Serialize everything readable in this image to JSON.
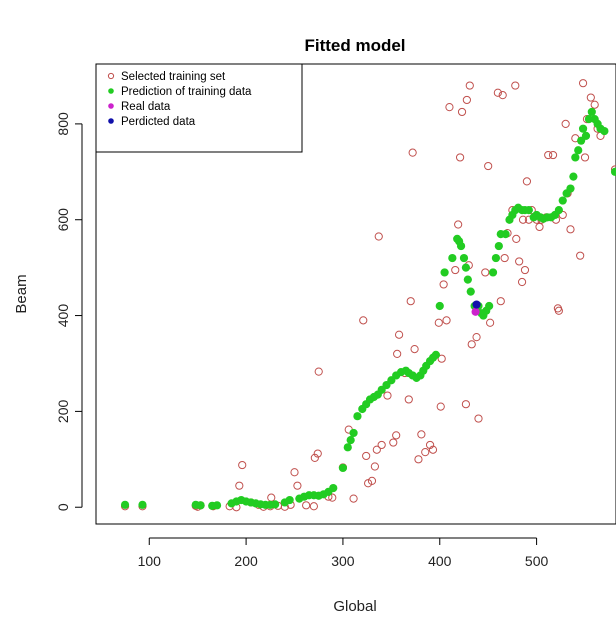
{
  "chart_data": {
    "type": "scatter",
    "title": "Fitted model",
    "xlabel": "Global",
    "ylabel": "Beam",
    "xlim": [
      45,
      582
    ],
    "ylim": [
      -35,
      925
    ],
    "xticks": [
      100,
      200,
      300,
      400,
      500
    ],
    "yticks": [
      0,
      200,
      400,
      600,
      800
    ],
    "grid": false,
    "legend_position": "top-left",
    "series": [
      {
        "name": "Selected training set",
        "marker": "open-circle",
        "color": "#c0504d",
        "points": [
          [
            75,
            2
          ],
          [
            93,
            2
          ],
          [
            148,
            3
          ],
          [
            150,
            1
          ],
          [
            153,
            4
          ],
          [
            166,
            2
          ],
          [
            183,
            2
          ],
          [
            190,
            0
          ],
          [
            193,
            45
          ],
          [
            196,
            88
          ],
          [
            205,
            10
          ],
          [
            213,
            5
          ],
          [
            218,
            1
          ],
          [
            225,
            2
          ],
          [
            226,
            20
          ],
          [
            233,
            3
          ],
          [
            240,
            1
          ],
          [
            246,
            5
          ],
          [
            250,
            73
          ],
          [
            253,
            45
          ],
          [
            262,
            4
          ],
          [
            270,
            2
          ],
          [
            271,
            103
          ],
          [
            274,
            112
          ],
          [
            275,
            283
          ],
          [
            285,
            22
          ],
          [
            289,
            20
          ],
          [
            300,
            83
          ],
          [
            306,
            162
          ],
          [
            311,
            18
          ],
          [
            321,
            390
          ],
          [
            324,
            107
          ],
          [
            326,
            50
          ],
          [
            330,
            55
          ],
          [
            333,
            85
          ],
          [
            335,
            120
          ],
          [
            337,
            565
          ],
          [
            340,
            130
          ],
          [
            346,
            233
          ],
          [
            352,
            135
          ],
          [
            355,
            150
          ],
          [
            356,
            320
          ],
          [
            358,
            360
          ],
          [
            364,
            280
          ],
          [
            368,
            225
          ],
          [
            370,
            430
          ],
          [
            372,
            740
          ],
          [
            374,
            330
          ],
          [
            378,
            100
          ],
          [
            381,
            152
          ],
          [
            385,
            115
          ],
          [
            390,
            130
          ],
          [
            393,
            120
          ],
          [
            399,
            385
          ],
          [
            401,
            210
          ],
          [
            402,
            310
          ],
          [
            404,
            465
          ],
          [
            407,
            390
          ],
          [
            410,
            835
          ],
          [
            416,
            495
          ],
          [
            419,
            590
          ],
          [
            421,
            730
          ],
          [
            423,
            825
          ],
          [
            427,
            215
          ],
          [
            428,
            850
          ],
          [
            430,
            505
          ],
          [
            431,
            880
          ],
          [
            433,
            340
          ],
          [
            438,
            355
          ],
          [
            440,
            185
          ],
          [
            447,
            490
          ],
          [
            450,
            712
          ],
          [
            452,
            385
          ],
          [
            460,
            865
          ],
          [
            463,
            430
          ],
          [
            465,
            860
          ],
          [
            467,
            520
          ],
          [
            470,
            572
          ],
          [
            475,
            620
          ],
          [
            478,
            880
          ],
          [
            479,
            560
          ],
          [
            482,
            513
          ],
          [
            485,
            470
          ],
          [
            486,
            600
          ],
          [
            488,
            495
          ],
          [
            490,
            680
          ],
          [
            492,
            600
          ],
          [
            495,
            620
          ],
          [
            500,
            600
          ],
          [
            503,
            585
          ],
          [
            505,
            600
          ],
          [
            510,
            605
          ],
          [
            512,
            735
          ],
          [
            517,
            735
          ],
          [
            520,
            600
          ],
          [
            522,
            415
          ],
          [
            523,
            410
          ],
          [
            527,
            610
          ],
          [
            530,
            800
          ],
          [
            532,
            655
          ],
          [
            535,
            580
          ],
          [
            540,
            770
          ],
          [
            545,
            525
          ],
          [
            548,
            885
          ],
          [
            550,
            730
          ],
          [
            552,
            810
          ],
          [
            556,
            855
          ],
          [
            560,
            840
          ],
          [
            563,
            790
          ],
          [
            566,
            775
          ],
          [
            581,
            705
          ]
        ]
      },
      {
        "name": "Prediction of training data",
        "marker": "filled-circle",
        "color": "#22cc22",
        "points": [
          [
            75,
            5
          ],
          [
            93,
            5
          ],
          [
            148,
            5
          ],
          [
            153,
            4
          ],
          [
            165,
            3
          ],
          [
            170,
            4
          ],
          [
            185,
            8
          ],
          [
            190,
            12
          ],
          [
            195,
            15
          ],
          [
            200,
            12
          ],
          [
            205,
            10
          ],
          [
            210,
            8
          ],
          [
            215,
            6
          ],
          [
            220,
            5
          ],
          [
            225,
            5
          ],
          [
            230,
            6
          ],
          [
            240,
            10
          ],
          [
            245,
            15
          ],
          [
            255,
            18
          ],
          [
            260,
            22
          ],
          [
            265,
            25
          ],
          [
            270,
            25
          ],
          [
            275,
            24
          ],
          [
            280,
            27
          ],
          [
            285,
            32
          ],
          [
            290,
            40
          ],
          [
            300,
            82
          ],
          [
            305,
            125
          ],
          [
            308,
            140
          ],
          [
            311,
            155
          ],
          [
            315,
            190
          ],
          [
            320,
            205
          ],
          [
            324,
            215
          ],
          [
            328,
            225
          ],
          [
            332,
            230
          ],
          [
            336,
            235
          ],
          [
            340,
            245
          ],
          [
            345,
            255
          ],
          [
            350,
            265
          ],
          [
            355,
            275
          ],
          [
            360,
            282
          ],
          [
            365,
            285
          ],
          [
            368,
            280
          ],
          [
            372,
            275
          ],
          [
            376,
            270
          ],
          [
            380,
            275
          ],
          [
            383,
            285
          ],
          [
            386,
            295
          ],
          [
            390,
            305
          ],
          [
            393,
            312
          ],
          [
            396,
            318
          ],
          [
            400,
            420
          ],
          [
            405,
            490
          ],
          [
            413,
            520
          ],
          [
            418,
            560
          ],
          [
            420,
            555
          ],
          [
            422,
            545
          ],
          [
            425,
            520
          ],
          [
            427,
            500
          ],
          [
            429,
            475
          ],
          [
            432,
            450
          ],
          [
            436,
            420
          ],
          [
            440,
            420
          ],
          [
            443,
            405
          ],
          [
            445,
            400
          ],
          [
            448,
            410
          ],
          [
            451,
            420
          ],
          [
            455,
            490
          ],
          [
            458,
            520
          ],
          [
            461,
            545
          ],
          [
            463,
            570
          ],
          [
            468,
            570
          ],
          [
            472,
            600
          ],
          [
            475,
            610
          ],
          [
            478,
            620
          ],
          [
            481,
            625
          ],
          [
            485,
            620
          ],
          [
            488,
            620
          ],
          [
            492,
            620
          ],
          [
            497,
            605
          ],
          [
            500,
            610
          ],
          [
            504,
            605
          ],
          [
            507,
            602
          ],
          [
            511,
            605
          ],
          [
            515,
            605
          ],
          [
            519,
            610
          ],
          [
            523,
            620
          ],
          [
            527,
            640
          ],
          [
            531,
            655
          ],
          [
            535,
            665
          ],
          [
            538,
            690
          ],
          [
            540,
            730
          ],
          [
            543,
            745
          ],
          [
            546,
            765
          ],
          [
            548,
            790
          ],
          [
            551,
            775
          ],
          [
            554,
            810
          ],
          [
            557,
            825
          ],
          [
            560,
            810
          ],
          [
            563,
            800
          ],
          [
            566,
            790
          ],
          [
            570,
            785
          ],
          [
            581,
            700
          ]
        ]
      },
      {
        "name": "Real data",
        "marker": "filled-circle",
        "color": "#cc22cc",
        "points": [
          [
            437,
            408
          ]
        ]
      },
      {
        "name": "Perdicted data",
        "marker": "filled-circle",
        "color": "#1010aa",
        "points": [
          [
            438,
            423
          ]
        ]
      }
    ]
  }
}
